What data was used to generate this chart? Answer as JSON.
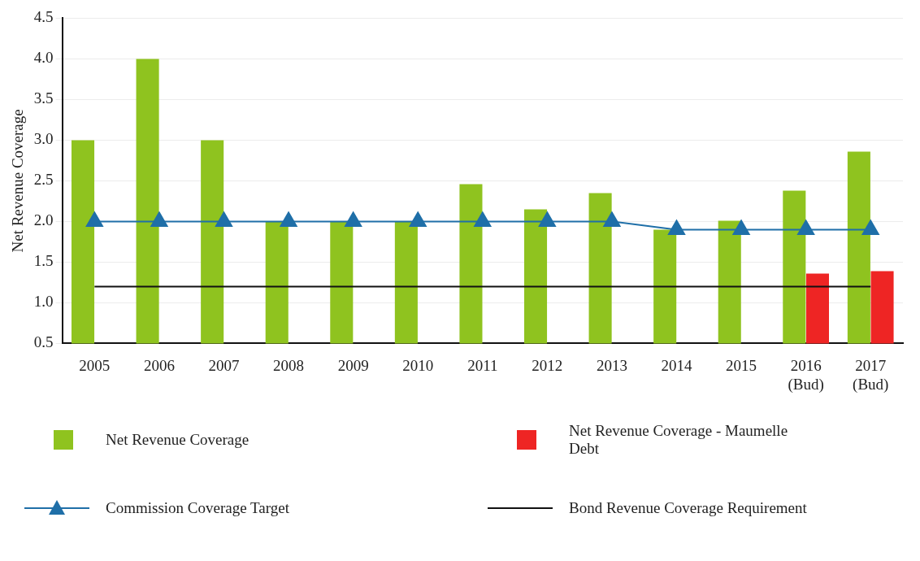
{
  "chart_data": {
    "type": "bar",
    "ylabel": "Net Revenue Coverage",
    "categories": [
      "2005",
      "2006",
      "2007",
      "2008",
      "2009",
      "2010",
      "2011",
      "2012",
      "2013",
      "2014",
      "2015",
      "2016 (Bud)",
      "2017 (Bud)"
    ],
    "series": [
      {
        "name": "Net Revenue Coverage",
        "color": "#8fc31f",
        "values": [
          3.0,
          4.0,
          3.0,
          2.0,
          2.0,
          2.0,
          2.46,
          2.15,
          2.35,
          1.9,
          2.01,
          2.38,
          2.86
        ]
      },
      {
        "name": "Net Revenue Coverage - Maumelle Debt",
        "color": "#ee2524",
        "values": [
          null,
          null,
          null,
          null,
          null,
          null,
          null,
          null,
          null,
          null,
          null,
          1.36,
          1.39
        ]
      },
      {
        "name": "Commission Coverage Target",
        "type": "line",
        "color": "#1f6fa8",
        "marker": "triangle",
        "values": [
          2.0,
          2.0,
          2.0,
          2.0,
          2.0,
          2.0,
          2.0,
          2.0,
          2.0,
          1.9,
          1.9,
          1.9,
          1.9
        ]
      },
      {
        "name": "Bond Revenue Coverage Requirement",
        "type": "line",
        "color": "#111111",
        "marker": "none",
        "values": [
          1.2,
          1.2,
          1.2,
          1.2,
          1.2,
          1.2,
          1.2,
          1.2,
          1.2,
          1.2,
          1.2,
          1.2,
          1.2
        ]
      }
    ],
    "ylim": [
      0.5,
      4.5
    ],
    "yticks": [
      0.5,
      {
        "value": 1,
        "label": "1.0"
      },
      1.5,
      {
        "value": 2,
        "label": "2.0"
      },
      2.5,
      {
        "value": 3,
        "label": "3.0"
      },
      3.5,
      {
        "value": 4,
        "label": "4.0"
      },
      4.5
    ],
    "grid": "y",
    "legend": "bottom"
  }
}
